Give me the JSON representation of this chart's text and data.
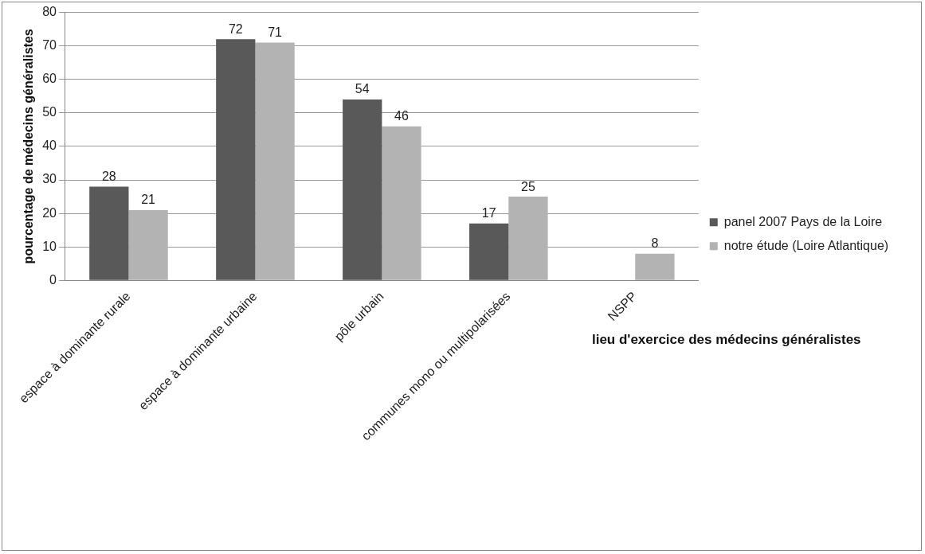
{
  "chart_data": {
    "type": "bar",
    "xlabel": "lieu d'exercice des médecins généralistes",
    "ylabel": "pourcentage de médecins généralistes",
    "categories": [
      "espace à dominante rurale",
      "espace à dominante urbaine",
      "pôle urbain",
      "communes mono ou multipolarisées",
      "NSPP"
    ],
    "series": [
      {
        "name": "panel 2007 Pays de la Loire",
        "color": "#595959",
        "values": [
          28,
          72,
          54,
          17,
          null
        ]
      },
      {
        "name": "notre étude (Loire Atlantique)",
        "color": "#b3b3b3",
        "values": [
          21,
          71,
          46,
          25,
          8
        ]
      }
    ],
    "ylim": [
      0,
      80
    ],
    "yticks": [
      0,
      10,
      20,
      30,
      40,
      50,
      60,
      70,
      80
    ],
    "grid": "y",
    "legend": "right",
    "data_labels": true
  }
}
